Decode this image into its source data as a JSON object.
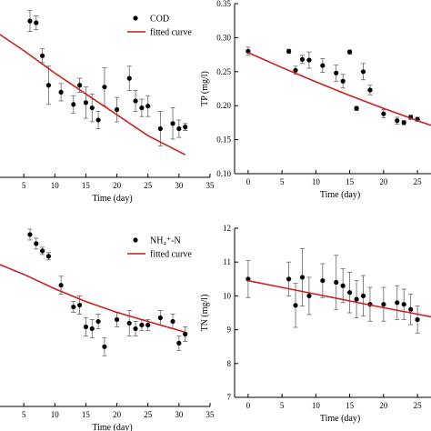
{
  "chart_data": [
    {
      "id": "cod",
      "type": "scatter",
      "xlabel": "Time (day)",
      "ylabel": "",
      "xlim": [
        0,
        35
      ],
      "ylim": [
        0,
        1
      ],
      "xticks": [
        5,
        10,
        15,
        20,
        25,
        30,
        35
      ],
      "yticks": [],
      "legend": [
        "COD",
        "fitted curve"
      ],
      "legend_position": "top-right",
      "series": [
        {
          "name": "COD",
          "x": [
            6,
            7,
            8,
            9,
            11,
            13,
            14,
            15,
            16,
            17,
            18,
            20,
            22,
            23,
            24,
            25,
            27,
            29,
            30,
            31
          ],
          "y": [
            0.9,
            0.89,
            0.7,
            0.53,
            0.49,
            0.42,
            0.53,
            0.43,
            0.4,
            0.33,
            0.52,
            0.39,
            0.57,
            0.44,
            0.4,
            0.41,
            0.28,
            0.31,
            0.28,
            0.29
          ],
          "err": [
            0.06,
            0.04,
            0.04,
            0.11,
            0.05,
            0.05,
            0.04,
            0.09,
            0.08,
            0.05,
            0.11,
            0.07,
            0.07,
            0.06,
            0.05,
            0.06,
            0.1,
            0.09,
            0.05,
            0.02
          ]
        },
        {
          "name": "fitted curve",
          "x": [
            0,
            5,
            10,
            15,
            20,
            25,
            31
          ],
          "y": [
            0.85,
            0.73,
            0.6,
            0.48,
            0.36,
            0.24,
            0.13
          ]
        }
      ]
    },
    {
      "id": "tp",
      "type": "scatter",
      "xlabel": "Time (day)",
      "ylabel": "TP (mg/l)",
      "xlim": [
        -2,
        27
      ],
      "ylim": [
        0.1,
        0.35
      ],
      "xticks": [
        0,
        5,
        10,
        15,
        20,
        25
      ],
      "yticks": [
        0.1,
        0.15,
        0.2,
        0.25,
        0.3,
        0.35
      ],
      "legend": [],
      "series": [
        {
          "name": "",
          "x": [
            0,
            6,
            7,
            8,
            9,
            11,
            13,
            14,
            15,
            16,
            17,
            18,
            20,
            22,
            23,
            24,
            25
          ],
          "y": [
            0.28,
            0.28,
            0.252,
            0.268,
            0.267,
            0.259,
            0.248,
            0.236,
            0.279,
            0.196,
            0.25,
            0.223,
            0.188,
            0.178,
            0.175,
            0.183,
            0.18
          ],
          "err": [
            0.006,
            0.003,
            0.006,
            0.006,
            0.012,
            0.01,
            0.012,
            0.01,
            0.003,
            0.003,
            0.012,
            0.007,
            0.006,
            0.005,
            0.003,
            0.003,
            0.003
          ]
        },
        {
          "name": "",
          "x": [
            0,
            5,
            10,
            15,
            20,
            25,
            27
          ],
          "y": [
            0.278,
            0.256,
            0.235,
            0.215,
            0.196,
            0.178,
            0.171
          ]
        }
      ]
    },
    {
      "id": "nh4",
      "type": "scatter",
      "xlabel": "Time (day)",
      "ylabel": "",
      "xlim": [
        0,
        35
      ],
      "ylim": [
        0,
        1
      ],
      "xticks": [
        5,
        10,
        15,
        20,
        25,
        30,
        35
      ],
      "yticks": [],
      "legend": [
        "NH₄⁺-N",
        "fitted curve"
      ],
      "legend_position": "top-right",
      "series": [
        {
          "name": "NH₄⁺-N",
          "x": [
            6,
            7,
            8,
            9,
            11,
            13,
            14,
            15,
            16,
            17,
            18,
            20,
            22,
            23,
            24,
            25,
            27,
            29,
            30,
            31
          ],
          "y": [
            0.95,
            0.9,
            0.86,
            0.83,
            0.67,
            0.55,
            0.56,
            0.44,
            0.43,
            0.47,
            0.33,
            0.48,
            0.46,
            0.43,
            0.45,
            0.45,
            0.49,
            0.47,
            0.35,
            0.4
          ],
          "err": [
            0.03,
            0.03,
            0.02,
            0.02,
            0.05,
            0.03,
            0.05,
            0.05,
            0.05,
            0.04,
            0.05,
            0.04,
            0.07,
            0.04,
            0.03,
            0.03,
            0.04,
            0.04,
            0.04,
            0.04
          ]
        },
        {
          "name": "fitted curve",
          "x": [
            0,
            5,
            10,
            15,
            20,
            25,
            31
          ],
          "y": [
            0.8,
            0.73,
            0.65,
            0.58,
            0.52,
            0.47,
            0.41
          ]
        }
      ]
    },
    {
      "id": "tn",
      "type": "scatter",
      "xlabel": "Time (day)",
      "ylabel": "TN (mg/l)",
      "xlim": [
        -2,
        27
      ],
      "ylim": [
        7,
        12
      ],
      "xticks": [
        0,
        5,
        10,
        15,
        20,
        25
      ],
      "yticks": [
        7,
        8,
        9,
        10,
        11,
        12
      ],
      "legend": [],
      "series": [
        {
          "name": "",
          "x": [
            0,
            6,
            7,
            8,
            9,
            11,
            13,
            14,
            15,
            16,
            17,
            18,
            20,
            22,
            23,
            24,
            25
          ],
          "y": [
            10.5,
            10.5,
            9.72,
            10.55,
            10.0,
            10.45,
            10.4,
            10.3,
            10.1,
            9.9,
            10.0,
            9.75,
            9.75,
            9.8,
            9.75,
            9.6,
            9.3
          ],
          "err": [
            0.55,
            0.5,
            0.65,
            0.85,
            0.55,
            0.5,
            0.8,
            0.5,
            0.6,
            0.55,
            0.6,
            0.5,
            0.5,
            0.5,
            0.45,
            0.45,
            0.4
          ]
        },
        {
          "name": "",
          "x": [
            0,
            5,
            10,
            15,
            20,
            25,
            27
          ],
          "y": [
            10.45,
            10.25,
            10.05,
            9.85,
            9.65,
            9.46,
            9.38
          ]
        }
      ]
    }
  ]
}
